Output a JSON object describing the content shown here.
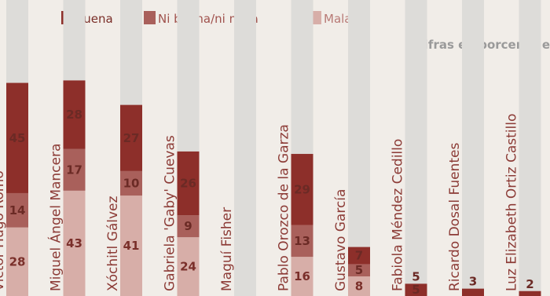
{
  "legend": {
    "good": "Buena",
    "neutral": "Ni buena/ni mala",
    "bad": "Mala"
  },
  "note": "Cifras en porcentaje",
  "colors": {
    "good": "#8d2f2a",
    "neutral": "#a9605b",
    "bad": "#d7aea8",
    "track": "#dddcd9",
    "background": "#f1ede8",
    "label": "#8c3b36"
  },
  "chart_data": {
    "type": "bar",
    "stacked": true,
    "categories": [
      "Víctor Hugo Romo",
      "Miguel Ángel Mancera",
      "Xóchitl Gálvez",
      "Gabriela 'Gaby' Cuevas",
      "Maguí Fisher",
      "Pablo Orozco de la Garza",
      "Gustavo García",
      "Fabiola Méndez Cedillo",
      "Ricardo Dosal Fuentes",
      "Luz Elizabeth Ortiz Castillo"
    ],
    "series": [
      {
        "name": "Mala",
        "values": [
          28,
          43,
          41,
          24,
          null,
          16,
          8,
          null,
          null,
          null
        ]
      },
      {
        "name": "Ni buena/ni mala",
        "values": [
          14,
          17,
          10,
          9,
          null,
          13,
          5,
          null,
          null,
          null
        ]
      },
      {
        "name": "Buena",
        "values": [
          45,
          28,
          27,
          26,
          null,
          29,
          7,
          5,
          3,
          2
        ]
      }
    ],
    "top_labels": [
      null,
      null,
      null,
      null,
      null,
      null,
      null,
      5,
      3,
      2
    ]
  }
}
